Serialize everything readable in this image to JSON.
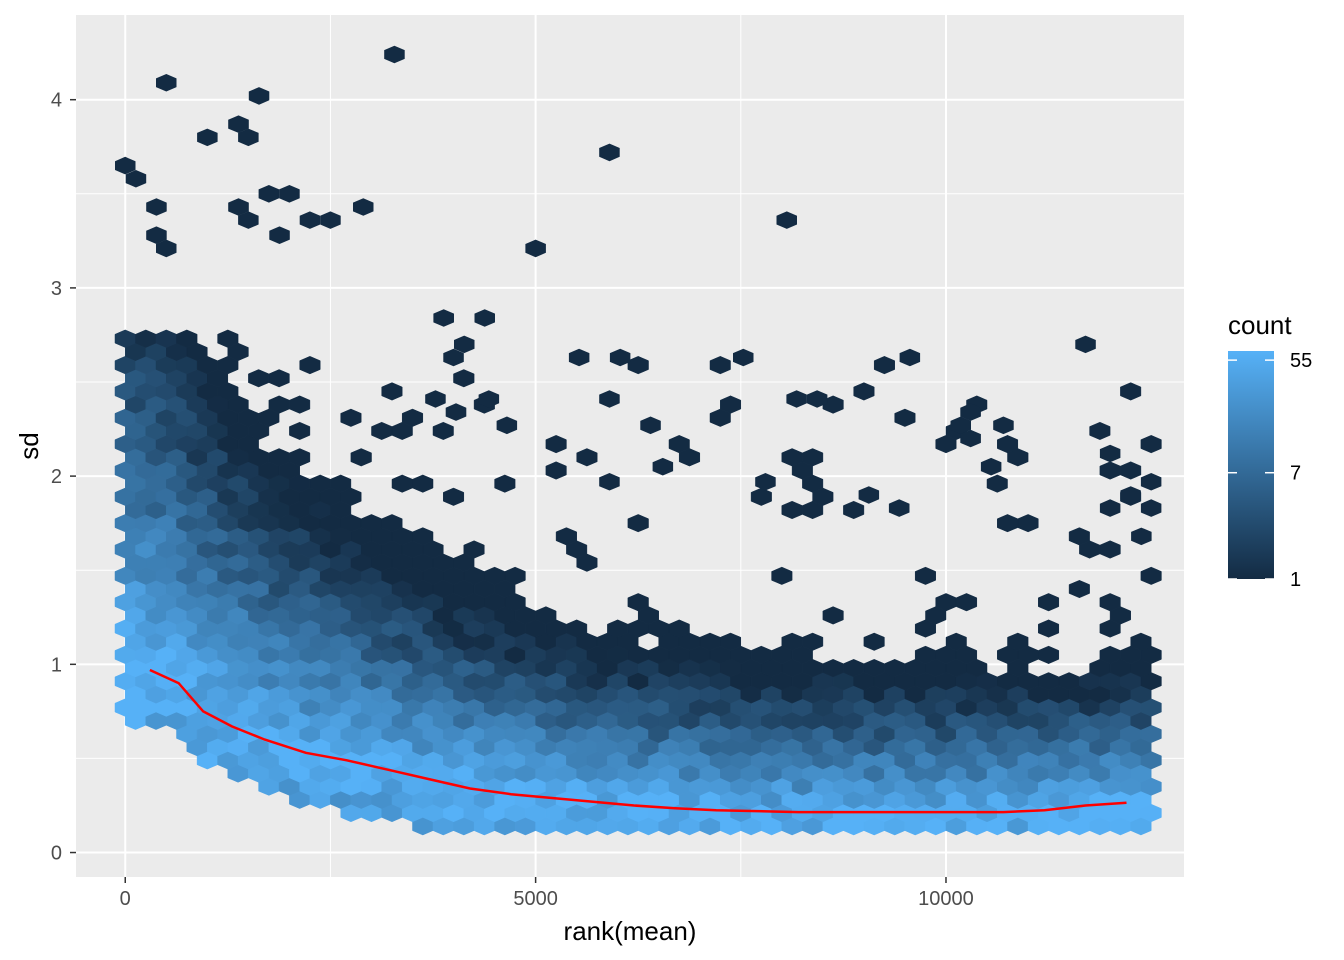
{
  "chart_data": {
    "type": "hexbin",
    "xlabel": "rank(mean)",
    "ylabel": "sd",
    "xlim": [
      -600,
      12900
    ],
    "ylim": [
      -0.13,
      4.45
    ],
    "x_ticks": [
      0,
      5000,
      10000
    ],
    "x_tick_labels": [
      "0",
      "5000",
      "10000"
    ],
    "y_ticks": [
      0,
      1,
      2,
      3,
      4
    ],
    "y_tick_labels": [
      "0",
      "1",
      "2",
      "3",
      "4"
    ],
    "grid": true,
    "legend": {
      "title": "count",
      "position": "right",
      "scale": "log",
      "min": 1,
      "max": 65,
      "breaks": [
        1,
        7,
        55
      ],
      "break_labels": [
        "1",
        "7",
        "55"
      ],
      "colors": [
        "#132b43",
        "#56b1f7"
      ]
    },
    "panel_background": "#ebebeb",
    "trend_line": {
      "color": "#ff0000",
      "x": [
        300,
        650,
        950,
        1300,
        1700,
        2200,
        2700,
        3200,
        3700,
        4200,
        4700,
        5200,
        5700,
        6200,
        6700,
        7200,
        7700,
        8200,
        8700,
        9200,
        9700,
        10200,
        10700,
        11200,
        11700,
        12200
      ],
      "y": [
        0.97,
        0.9,
        0.75,
        0.67,
        0.6,
        0.53,
        0.49,
        0.44,
        0.39,
        0.34,
        0.31,
        0.29,
        0.27,
        0.25,
        0.235,
        0.225,
        0.22,
        0.215,
        0.215,
        0.215,
        0.215,
        0.215,
        0.215,
        0.225,
        0.25,
        0.265
      ]
    },
    "outliers": [
      {
        "x": 0,
        "y": 3.65
      },
      {
        "x": 130,
        "y": 3.58
      },
      {
        "x": 500,
        "y": 4.09
      },
      {
        "x": 380,
        "y": 3.43
      },
      {
        "x": 380,
        "y": 3.28
      },
      {
        "x": 500,
        "y": 3.21
      },
      {
        "x": 1000,
        "y": 3.8
      },
      {
        "x": 1380,
        "y": 3.87
      },
      {
        "x": 1500,
        "y": 3.8
      },
      {
        "x": 1630,
        "y": 4.02
      },
      {
        "x": 1380,
        "y": 3.43
      },
      {
        "x": 1500,
        "y": 3.36
      },
      {
        "x": 1750,
        "y": 3.5
      },
      {
        "x": 2000,
        "y": 3.5
      },
      {
        "x": 1880,
        "y": 3.28
      },
      {
        "x": 2250,
        "y": 3.36
      },
      {
        "x": 2500,
        "y": 3.36
      },
      {
        "x": 2900,
        "y": 3.43
      },
      {
        "x": 3280,
        "y": 4.24
      },
      {
        "x": 5000,
        "y": 3.21
      },
      {
        "x": 5900,
        "y": 3.72
      },
      {
        "x": 8060,
        "y": 3.36
      },
      {
        "x": 5530,
        "y": 2.63
      },
      {
        "x": 6030,
        "y": 2.63
      },
      {
        "x": 7530,
        "y": 2.63
      },
      {
        "x": 9560,
        "y": 2.63
      },
      {
        "x": 11700,
        "y": 2.7
      },
      {
        "x": 5900,
        "y": 2.41
      },
      {
        "x": 8180,
        "y": 2.41
      },
      {
        "x": 8430,
        "y": 2.41
      },
      {
        "x": 4380,
        "y": 2.84
      },
      {
        "x": 3880,
        "y": 2.84
      },
      {
        "x": 4130,
        "y": 2.7
      },
      {
        "x": 4000,
        "y": 2.63
      },
      {
        "x": 3780,
        "y": 2.41
      },
      {
        "x": 4430,
        "y": 2.41
      },
      {
        "x": 4030,
        "y": 2.34
      },
      {
        "x": 4650,
        "y": 2.27
      },
      {
        "x": 6400,
        "y": 2.27
      },
      {
        "x": 9060,
        "y": 1.9
      },
      {
        "x": 9430,
        "y": 1.83
      },
      {
        "x": 10300,
        "y": 2.34
      },
      {
        "x": 10180,
        "y": 2.27
      },
      {
        "x": 10300,
        "y": 2.2
      },
      {
        "x": 10700,
        "y": 2.27
      },
      {
        "x": 10550,
        "y": 2.05
      },
      {
        "x": 12000,
        "y": 2.12
      },
      {
        "x": 12500,
        "y": 1.97
      },
      {
        "x": 12250,
        "y": 1.9
      },
      {
        "x": 12000,
        "y": 1.83
      },
      {
        "x": 12500,
        "y": 1.83
      },
      {
        "x": 12380,
        "y": 1.68
      },
      {
        "x": 5900,
        "y": 1.97
      },
      {
        "x": 7800,
        "y": 1.97
      },
      {
        "x": 6550,
        "y": 2.05
      }
    ]
  }
}
